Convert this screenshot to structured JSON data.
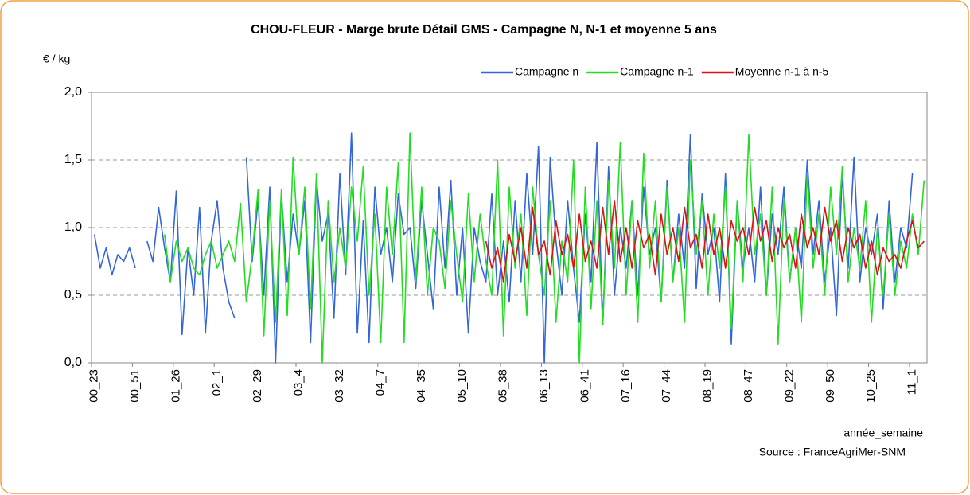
{
  "chart_data": {
    "type": "line",
    "title": "CHOU-FLEUR - Marge brute Détail GMS - Campagne N, N-1 et moyenne 5 ans",
    "y_label": "€ / kg",
    "x_label": "année_semaine",
    "source": "Source : FranceAgriMer-SNM",
    "ylim": [
      0,
      2
    ],
    "yticks": [
      {
        "value": 0,
        "label": "0,0"
      },
      {
        "value": 0.5,
        "label": "0,5"
      },
      {
        "value": 1,
        "label": "1,0"
      },
      {
        "value": 1.5,
        "label": "1,5"
      },
      {
        "value": 2,
        "label": "2,0"
      }
    ],
    "grid": true,
    "legend": "top-right",
    "categories": [
      "00_23",
      null,
      null,
      null,
      null,
      null,
      null,
      "00_51",
      null,
      null,
      null,
      null,
      null,
      null,
      "01_26",
      null,
      null,
      null,
      null,
      null,
      null,
      "02_1",
      null,
      null,
      null,
      null,
      null,
      null,
      "02_29",
      null,
      null,
      null,
      null,
      null,
      null,
      "03_4",
      null,
      null,
      null,
      null,
      null,
      null,
      "03_32",
      null,
      null,
      null,
      null,
      null,
      null,
      "04_7",
      null,
      null,
      null,
      null,
      null,
      null,
      "04_35",
      null,
      null,
      null,
      null,
      null,
      null,
      "05_10",
      null,
      null,
      null,
      null,
      null,
      null,
      "05_38",
      null,
      null,
      null,
      null,
      null,
      null,
      "06_13",
      null,
      null,
      null,
      null,
      null,
      null,
      "06_41",
      null,
      null,
      null,
      null,
      null,
      null,
      "07_16",
      null,
      null,
      null,
      null,
      null,
      null,
      "07_44",
      null,
      null,
      null,
      null,
      null,
      null,
      "08_19",
      null,
      null,
      null,
      null,
      null,
      null,
      "08_47",
      null,
      null,
      null,
      null,
      null,
      null,
      "09_22",
      null,
      null,
      null,
      null,
      null,
      null,
      "09_50",
      null,
      null,
      null,
      null,
      null,
      null,
      "10_25",
      null,
      null,
      null,
      null,
      null,
      null,
      "11_1",
      null,
      null
    ],
    "series": [
      {
        "name": "Campagne n",
        "color": "#3366dd",
        "values": [
          0.95,
          0.7,
          0.85,
          0.65,
          0.8,
          0.75,
          0.85,
          0.7,
          null,
          0.9,
          0.75,
          1.15,
          0.85,
          0.6,
          1.27,
          0.21,
          0.85,
          0.5,
          1.15,
          0.22,
          0.9,
          1.2,
          0.7,
          0.45,
          0.33,
          null,
          1.52,
          0.75,
          1.2,
          0.5,
          1.3,
          0.0,
          1.25,
          0.6,
          1.1,
          0.8,
          1.2,
          0.15,
          1.35,
          0.9,
          1.1,
          0.33,
          1.4,
          0.65,
          1.7,
          0.22,
          1.05,
          0.15,
          1.3,
          0.8,
          1.0,
          0.6,
          1.25,
          0.95,
          1.0,
          0.55,
          1.2,
          0.8,
          0.4,
          1.3,
          0.7,
          1.35,
          0.5,
          1.0,
          0.22,
          1.0,
          0.75,
          0.6,
          1.25,
          0.5,
          0.9,
          0.45,
          1.2,
          0.6,
          1.4,
          0.8,
          1.6,
          0.0,
          1.52,
          0.9,
          0.5,
          1.2,
          0.7,
          0.3,
          1.1,
          0.6,
          1.63,
          0.28,
          1.45,
          0.5,
          1.0,
          0.7,
          1.2,
          0.5,
          1.3,
          0.8,
          1.0,
          0.45,
          1.35,
          0.6,
          1.1,
          0.7,
          1.69,
          0.55,
          1.25,
          0.8,
          1.0,
          0.45,
          1.4,
          0.14,
          1.2,
          0.7,
          1.0,
          0.6,
          1.3,
          0.5,
          1.1,
          0.8,
          1.3,
          0.6,
          1.0,
          0.7,
          1.5,
          0.8,
          1.2,
          0.6,
          1.0,
          0.35,
          1.4,
          0.7,
          1.52,
          0.6,
          1.0,
          0.8,
          1.1,
          0.4,
          1.2,
          0.6,
          1.0,
          0.85,
          1.4,
          null,
          null
        ]
      },
      {
        "name": "Campagne n-1",
        "color": "#22dd22",
        "values": [
          null,
          null,
          null,
          null,
          null,
          null,
          null,
          null,
          null,
          null,
          null,
          null,
          0.95,
          0.6,
          0.9,
          0.75,
          0.85,
          0.7,
          0.65,
          0.8,
          0.9,
          0.7,
          0.8,
          0.9,
          0.75,
          1.18,
          0.45,
          0.8,
          1.28,
          0.2,
          1.2,
          0.3,
          1.28,
          0.35,
          1.52,
          0.8,
          1.3,
          0.4,
          1.4,
          0.0,
          1.2,
          0.6,
          1.0,
          0.7,
          1.3,
          0.9,
          1.45,
          0.5,
          1.1,
          0.15,
          1.3,
          0.8,
          1.48,
          0.15,
          1.7,
          0.6,
          1.3,
          0.5,
          1.0,
          0.9,
          0.55,
          1.2,
          0.8,
          0.45,
          1.25,
          0.6,
          1.1,
          0.75,
          0.5,
          1.5,
          0.2,
          1.3,
          0.7,
          1.1,
          0.35,
          1.3,
          0.8,
          0.5,
          1.2,
          0.3,
          0.9,
          0.6,
          1.5,
          0.0,
          1.3,
          0.4,
          1.2,
          0.28,
          1.35,
          0.7,
          1.63,
          0.5,
          1.2,
          0.3,
          1.55,
          0.7,
          1.2,
          0.45,
          1.3,
          0.6,
          1.0,
          0.3,
          1.5,
          0.8,
          1.2,
          0.5,
          1.1,
          0.7,
          1.3,
          0.25,
          1.2,
          0.6,
          1.69,
          0.8,
          1.1,
          0.5,
          1.3,
          0.14,
          1.2,
          0.6,
          1.0,
          0.3,
          1.4,
          0.7,
          1.1,
          0.5,
          1.3,
          0.8,
          1.45,
          0.6,
          1.0,
          0.7,
          1.2,
          0.3,
          1.0,
          0.5,
          1.1,
          0.5,
          0.9,
          0.7,
          1.1,
          0.8,
          1.35
        ]
      },
      {
        "name": "Moyenne n-1 à n-5",
        "color": "#dd1111",
        "values": [
          null,
          null,
          null,
          null,
          null,
          null,
          null,
          null,
          null,
          null,
          null,
          null,
          null,
          null,
          null,
          null,
          null,
          null,
          null,
          null,
          null,
          null,
          null,
          null,
          null,
          null,
          null,
          null,
          null,
          null,
          null,
          null,
          null,
          null,
          null,
          null,
          null,
          null,
          null,
          null,
          null,
          null,
          null,
          null,
          null,
          null,
          null,
          null,
          null,
          null,
          null,
          null,
          null,
          null,
          null,
          null,
          null,
          null,
          null,
          null,
          null,
          null,
          null,
          null,
          null,
          null,
          null,
          0.9,
          0.7,
          0.85,
          0.6,
          0.95,
          0.75,
          1.0,
          0.7,
          1.15,
          0.8,
          0.9,
          0.65,
          1.05,
          0.8,
          0.95,
          0.7,
          1.1,
          0.75,
          0.9,
          0.7,
          1.15,
          0.8,
          1.2,
          0.75,
          1.0,
          0.7,
          1.05,
          0.85,
          0.95,
          0.65,
          1.1,
          0.8,
          1.0,
          0.75,
          1.15,
          0.85,
          0.95,
          0.7,
          1.1,
          0.8,
          1.0,
          0.7,
          1.05,
          0.9,
          1.0,
          0.8,
          1.15,
          0.9,
          1.05,
          0.75,
          1.0,
          0.85,
          0.95,
          0.7,
          1.1,
          0.85,
          1.0,
          0.8,
          1.15,
          0.9,
          1.05,
          0.75,
          1.0,
          0.85,
          0.95,
          0.7,
          0.9,
          0.65,
          0.85,
          0.75,
          0.8,
          0.7,
          0.9,
          1.05,
          0.85,
          0.9
        ]
      }
    ]
  }
}
